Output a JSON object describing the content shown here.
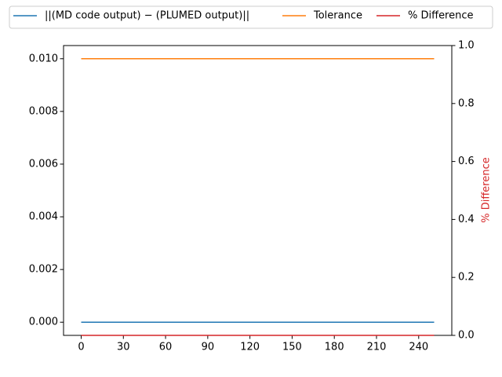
{
  "chart_data": {
    "type": "line",
    "x": [
      0,
      251
    ],
    "series": [
      {
        "name": "||(MD code output) − (PLUMED output)||",
        "color": "#1f77b4",
        "values": [
          0,
          0
        ]
      },
      {
        "name": "Tolerance",
        "color": "#ff7f0e",
        "values": [
          0.01,
          0.01
        ]
      },
      {
        "name": "% Difference",
        "color": "#d62728",
        "values": [
          0,
          0
        ],
        "axis": "y2"
      }
    ],
    "xlim": [
      -12.55,
      263.55
    ],
    "xticks": [
      0,
      30,
      60,
      90,
      120,
      150,
      180,
      210,
      240
    ],
    "ylim": [
      -0.0005,
      0.0105
    ],
    "yticks": [
      {
        "value": 0,
        "label": "0.000"
      },
      {
        "value": 0.002,
        "label": "0.002"
      },
      {
        "value": 0.004,
        "label": "0.004"
      },
      {
        "value": 0.006,
        "label": "0.006"
      },
      {
        "value": 0.008,
        "label": "0.008"
      },
      {
        "value": 0.01,
        "label": "0.010"
      }
    ],
    "y2lim": [
      0,
      1
    ],
    "y2ticks": [
      {
        "value": 0,
        "label": "0.0"
      },
      0.2,
      0.4,
      0.6,
      0.8,
      {
        "value": 1,
        "label": "1.0"
      }
    ],
    "y2label": "% Difference",
    "y2label_color": "#d62728",
    "legend": "top"
  }
}
